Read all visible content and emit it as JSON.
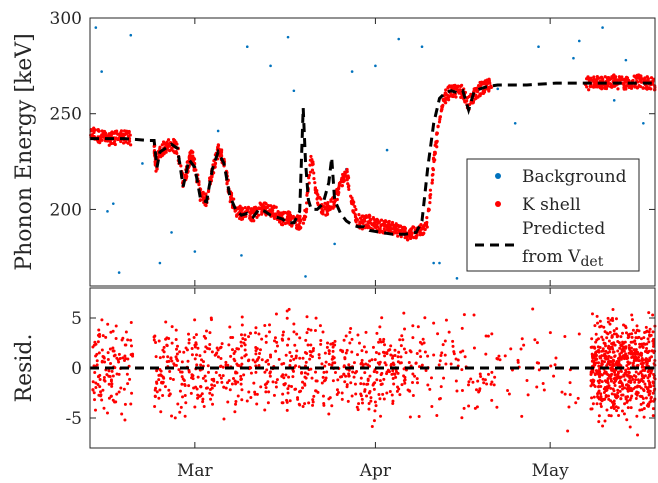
{
  "chart_data": [
    {
      "type": "scatter",
      "panel": "top",
      "ylabel": "Phonon Energy [keV]",
      "ylim": [
        160,
        300
      ],
      "yticks": [
        200,
        250,
        300
      ],
      "xticks": [
        "Mar",
        "Apr",
        "May"
      ],
      "x_unit": "days since Feb 11",
      "xlim": [
        0,
        97
      ],
      "legend": {
        "placement": "right",
        "entries": [
          {
            "label": "Background",
            "marker": "dot",
            "color": "#0072BD"
          },
          {
            "label": "K shell",
            "marker": "dot",
            "color": "#FF0000"
          },
          {
            "label": "Predicted",
            "label_line2": "from V",
            "label_sub": "det",
            "marker": "dashed-line",
            "color": "#000000"
          }
        ]
      },
      "series": [
        {
          "name": "K shell",
          "color": "#FF0000",
          "segments": [
            {
              "x": [
                0,
                1,
                2,
                3,
                4,
                5,
                6,
                7
              ],
              "y": [
                239,
                239,
                238,
                237,
                237,
                238,
                238,
                237
              ]
            },
            {
              "x": [
                11,
                11.3,
                12,
                13,
                14,
                15,
                16,
                17,
                17.5,
                18,
                19,
                20,
                21,
                22,
                23,
                24,
                25,
                26,
                27,
                28,
                29,
                30,
                31,
                32,
                33,
                34,
                35,
                36,
                37,
                38,
                39,
                40,
                41,
                42,
                43,
                44,
                45,
                46,
                47,
                48,
                49,
                50,
                51,
                52,
                53,
                54,
                55,
                56,
                57,
                58,
                59,
                60,
                61,
                62,
                63,
                64,
                65,
                66,
                67,
                68,
                69
              ],
              "y": [
                235,
                222,
                230,
                233,
                234,
                232,
                214,
                225,
                229,
                222,
                207,
                205,
                220,
                231,
                226,
                208,
                200,
                198,
                198,
                197,
                200,
                201,
                199,
                198,
                195,
                196,
                194,
                193,
                198,
                227,
                206,
                200,
                201,
                205,
                212,
                221,
                203,
                194,
                193,
                194,
                192,
                191,
                191,
                190,
                189,
                188,
                187,
                188,
                189,
                194,
                225,
                246,
                259,
                262,
                261,
                262,
                255,
                260,
                263,
                264,
                265
              ]
            },
            {
              "x": [
                85,
                86,
                87,
                88,
                89,
                90,
                91,
                92,
                93,
                94,
                95,
                96,
                97
              ],
              "y": [
                266,
                266,
                267,
                266,
                266,
                267,
                266,
                266,
                266,
                267,
                266,
                266,
                266
              ]
            }
          ]
        },
        {
          "name": "Background",
          "color": "#0072BD",
          "x": [
            1,
            2,
            4,
            7,
            9,
            3,
            5,
            12,
            14,
            18,
            22,
            27,
            31,
            34,
            37,
            42,
            45,
            49,
            53,
            57,
            60,
            63,
            66,
            70,
            73,
            77,
            81,
            84,
            88,
            92,
            95,
            26,
            35,
            44,
            51,
            59,
            68,
            75,
            83,
            90
          ],
          "y": [
            295,
            272,
            203,
            291,
            224,
            199,
            167,
            172,
            188,
            178,
            241,
            285,
            275,
            290,
            165,
            182,
            272,
            275,
            289,
            285,
            172,
            164,
            218,
            263,
            245,
            285,
            220,
            288,
            295,
            278,
            245,
            176,
            262,
            221,
            231,
            172,
            210,
            218,
            279,
            257
          ]
        },
        {
          "name": "Predicted from Vdet",
          "color": "#000000",
          "style": "dashed",
          "x": [
            0,
            6,
            10,
            11,
            11.5,
            12,
            14,
            15,
            16,
            17,
            18,
            19,
            20,
            21,
            22,
            23,
            24,
            25,
            26,
            27,
            28,
            29,
            30,
            31,
            32,
            33,
            34,
            35,
            36,
            36.6,
            37,
            37.5,
            38,
            39,
            40,
            41,
            41.5,
            42,
            43,
            44,
            45,
            46,
            47,
            48,
            50,
            52,
            54,
            56,
            57,
            58,
            59,
            60,
            61,
            62,
            63,
            64,
            65,
            66,
            67,
            68,
            70,
            75,
            80,
            85,
            90,
            97
          ],
          "y": [
            237,
            237,
            236,
            236,
            222,
            230,
            234,
            232,
            212,
            226,
            222,
            205,
            204,
            221,
            230,
            224,
            207,
            200,
            197,
            198,
            196,
            200,
            199,
            197,
            196,
            195,
            193,
            193,
            199,
            253,
            225,
            205,
            200,
            200,
            203,
            214,
            227,
            205,
            198,
            194,
            192,
            191,
            191,
            189,
            188,
            187,
            187,
            188,
            194,
            222,
            245,
            258,
            261,
            262,
            261,
            262,
            252,
            262,
            263,
            264,
            265,
            265,
            266,
            266,
            266,
            266
          ]
        }
      ]
    },
    {
      "type": "scatter",
      "panel": "bottom",
      "ylabel": "Resid.",
      "ylim": [
        -8,
        8
      ],
      "yticks": [
        -5,
        0,
        5
      ],
      "xticks": [
        "Mar",
        "Apr",
        "May"
      ],
      "xlim": [
        0,
        97
      ],
      "series": [
        {
          "name": "Residual",
          "color": "#FF0000",
          "x": [
            0.5,
            1,
            1.5,
            2,
            2.5,
            3,
            3.5,
            4,
            4.5,
            5,
            5.5,
            6,
            6.5,
            7,
            11,
            12,
            13,
            14,
            15,
            16,
            17,
            18,
            19,
            20,
            21,
            22,
            23,
            24,
            25,
            26,
            27,
            28,
            29,
            30,
            31,
            32,
            33,
            34,
            35,
            36,
            37,
            38,
            39,
            40,
            41,
            42,
            43,
            44,
            45,
            46,
            47,
            48,
            49,
            50,
            51,
            52,
            53,
            54,
            55,
            56,
            57,
            58,
            59,
            60,
            61,
            62,
            63,
            64,
            65,
            66,
            67,
            68,
            69,
            70,
            72,
            74,
            76,
            78,
            80,
            82,
            84,
            86,
            87,
            88,
            89,
            90,
            91,
            92,
            93,
            94,
            95,
            96,
            97
          ],
          "y": [
            2.1,
            -1.5,
            3.8,
            -3.2,
            0.6,
            -4.5,
            1.9,
            -0.8,
            4.2,
            -2.4,
            2.8,
            -5.2,
            0.9,
            -3.6,
            3.1,
            -2.2,
            4.6,
            -4.8,
            1.4,
            -1.1,
            2.5,
            -3.9,
            0.3,
            3.7,
            -2.7,
            1.8,
            -5.1,
            4.1,
            -0.5,
            2.2,
            -3.3,
            0.8,
            3.4,
            -4.2,
            1.1,
            -1.9,
            2.9,
            -2.5,
            4.4,
            -3.7,
            0.2,
            1.6,
            -1.3,
            3.6,
            -4.6,
            2.3,
            -0.9,
            1.5,
            -2.8,
            3.3,
            -1.6,
            0.7,
            -3.4,
            2.6,
            -0.4,
            1.2,
            -2.1,
            3.9,
            -4.9,
            0.5,
            2.4,
            -1.7,
            1.3,
            -3.1,
            2.7,
            0.4,
            -2.3,
            1.7,
            -3.8,
            2.0,
            -0.6,
            3.2,
            -1.4,
            0.9,
            -2.6,
            1.9,
            5.9,
            -2.2,
            1.0,
            -6.3,
            3.4,
            -4.1,
            2.8,
            -5.8,
            4.6,
            -3.3,
            1.2,
            -2.9,
            5.3,
            -6.7,
            0.8,
            3.6,
            -1.1
          ]
        },
        {
          "name": "Zero",
          "color": "#000000",
          "style": "dashed",
          "x": [
            0,
            97
          ],
          "y": [
            0,
            0
          ]
        }
      ]
    }
  ]
}
